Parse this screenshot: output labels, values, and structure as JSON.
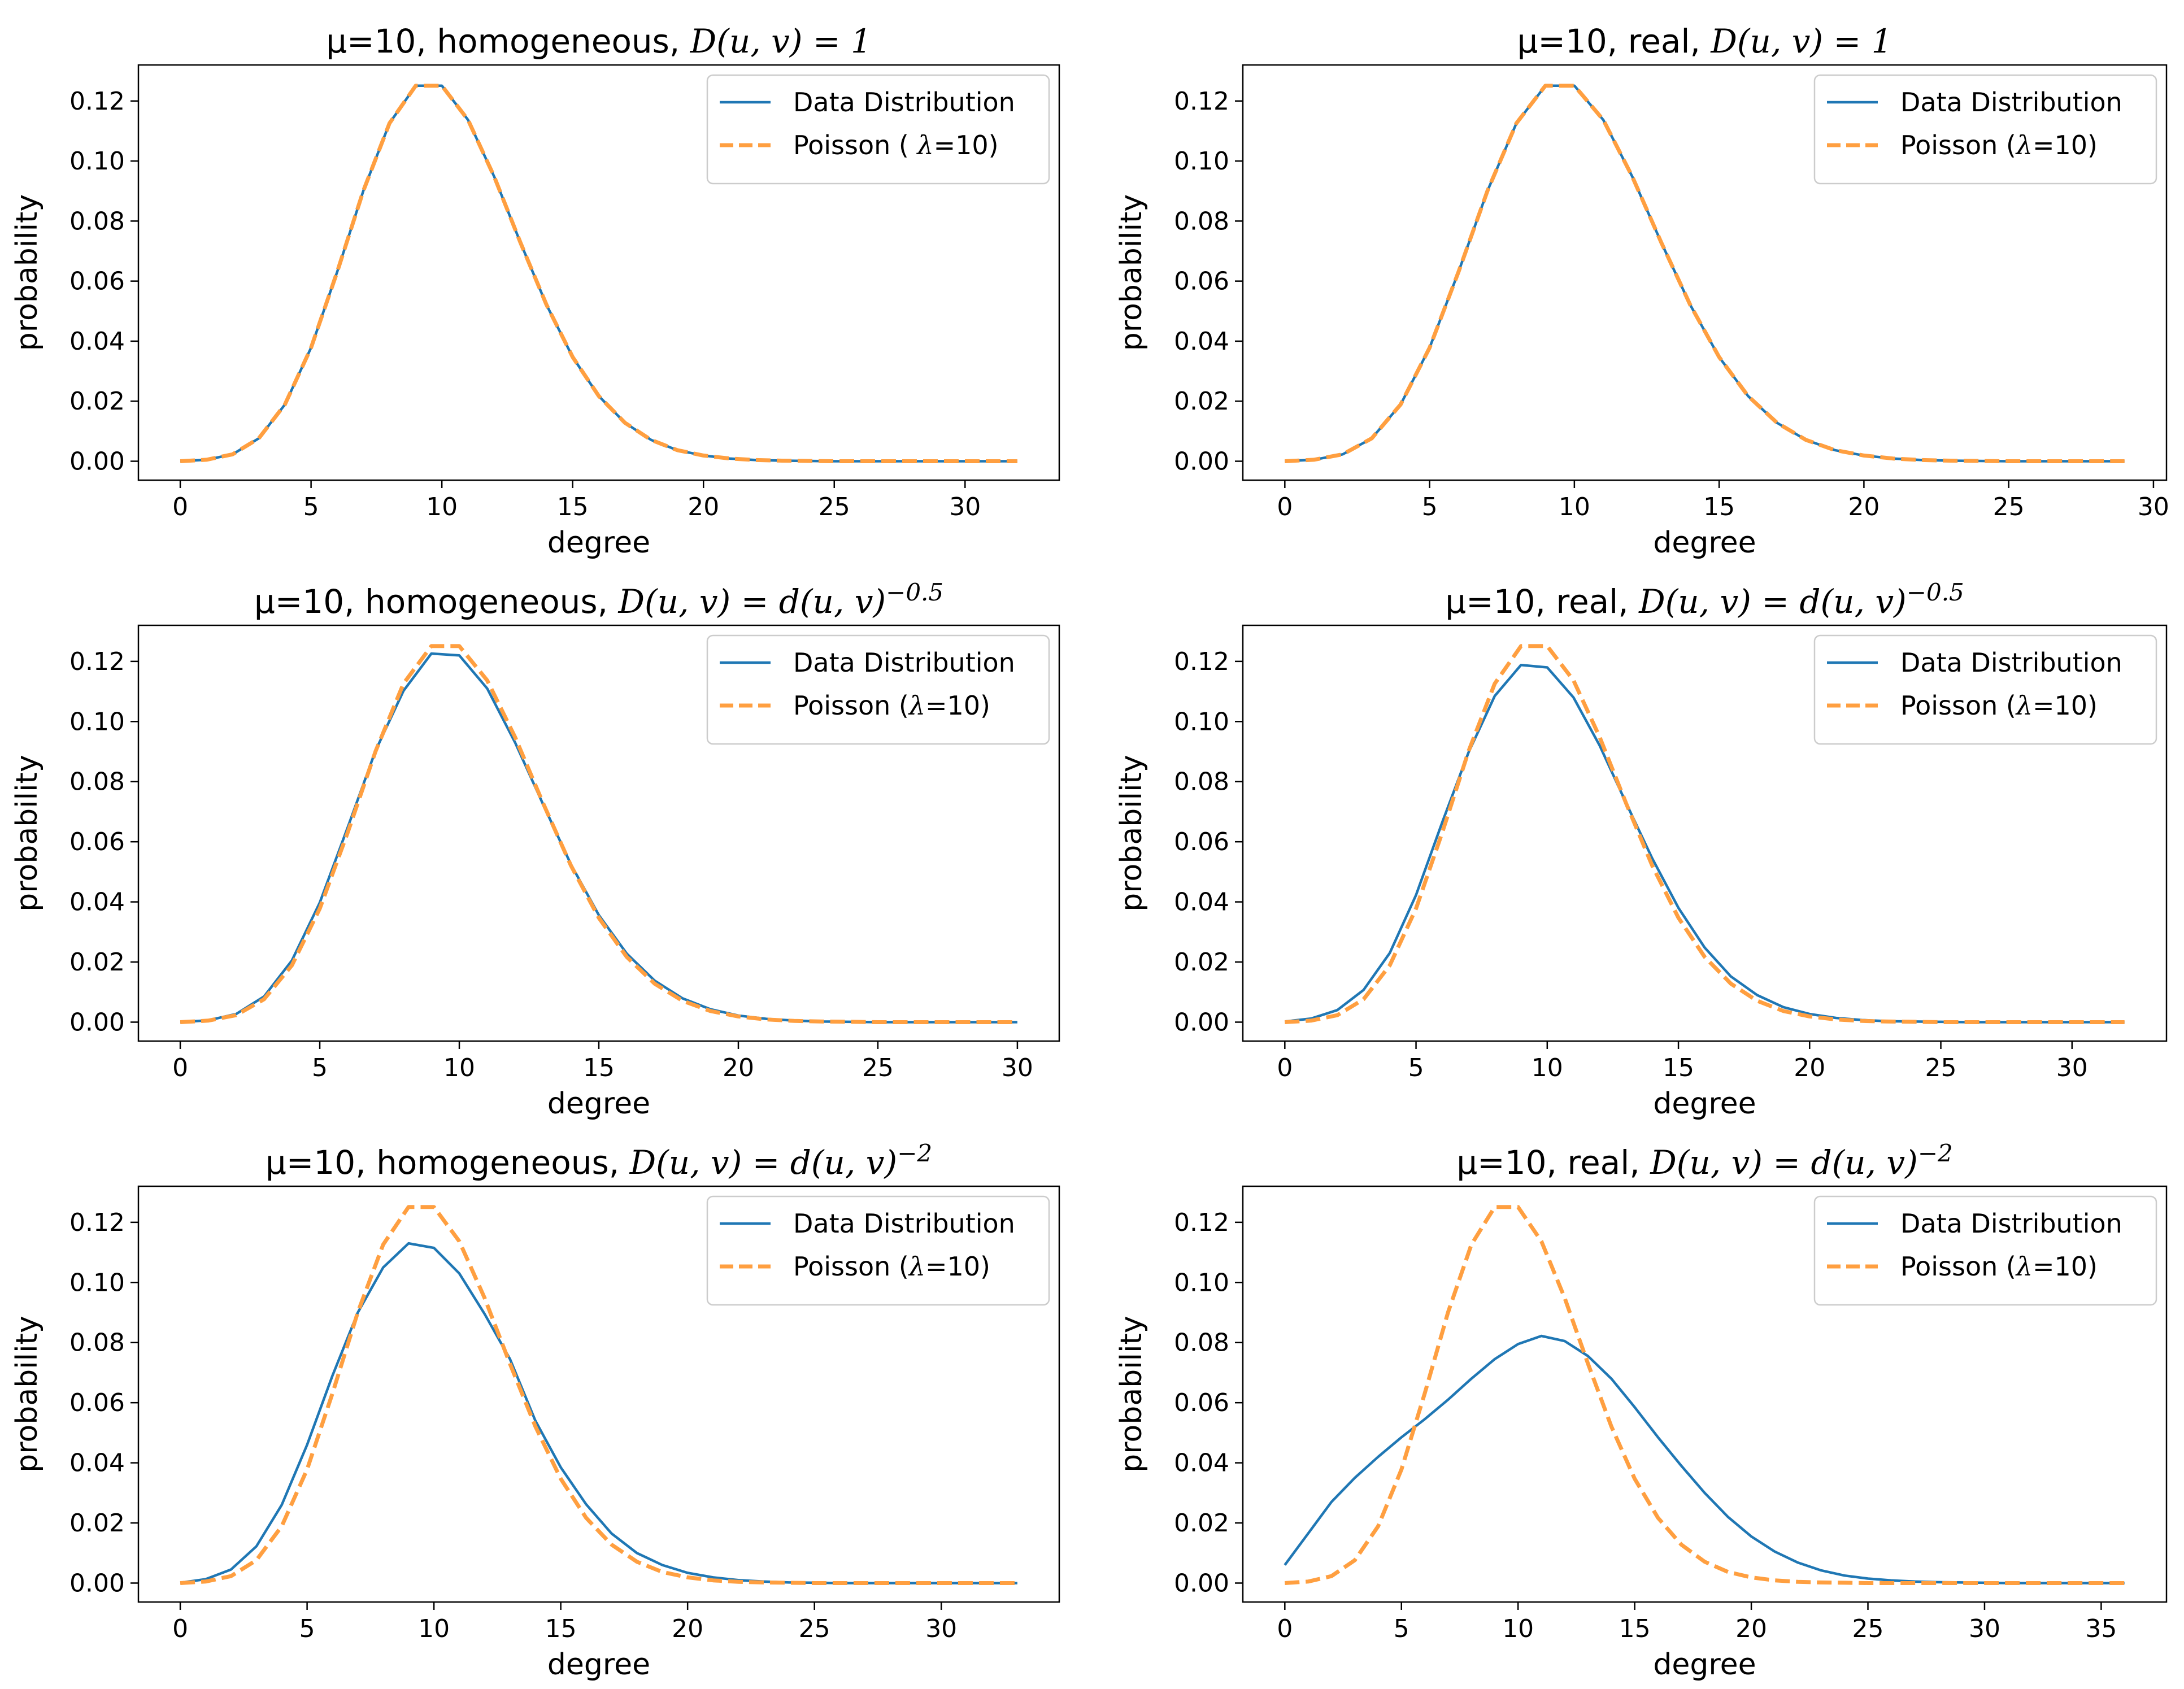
{
  "colors": {
    "data": "#1f77b4",
    "poisson": "#ff9f40"
  },
  "chart_data": [
    {
      "type": "line",
      "title": {
        "prefix": "μ=10, homogeneous, ",
        "formula": "D(u, v) = 1"
      },
      "xlabel": "degree",
      "ylabel": "probability",
      "xlim": [
        -1.6,
        33.6
      ],
      "ylim": [
        -0.0063,
        0.132
      ],
      "xticks": [
        0,
        5,
        10,
        15,
        20,
        25,
        30
      ],
      "yticks": [
        "0.00",
        "0.02",
        "0.04",
        "0.06",
        "0.08",
        "0.10",
        "0.12"
      ],
      "legend_position": "top-right",
      "series": [
        {
          "name": "Data Distribution",
          "style": "solid",
          "x_max": 32,
          "values": [
            0.0,
            0.0005,
            0.0023,
            0.0076,
            0.0189,
            0.0378,
            0.0631,
            0.0901,
            0.1126,
            0.1251,
            0.1251,
            0.1137,
            0.0948,
            0.0729,
            0.0521,
            0.0347,
            0.0217,
            0.0128,
            0.0071,
            0.0037,
            0.0019,
            0.0009,
            0.0004,
            0.0002,
            0.0001,
            0.0,
            0.0,
            0.0,
            0.0,
            0.0,
            0.0,
            0.0,
            0.0
          ]
        },
        {
          "name": "Poisson ( λ=10)",
          "style": "dashed",
          "x_max": 32,
          "values": [
            0.0,
            0.0005,
            0.0023,
            0.0076,
            0.0189,
            0.0378,
            0.0631,
            0.0901,
            0.1126,
            0.1251,
            0.1251,
            0.1137,
            0.0948,
            0.0729,
            0.0521,
            0.0347,
            0.0217,
            0.0128,
            0.0071,
            0.0037,
            0.0019,
            0.0009,
            0.0004,
            0.0002,
            0.0001,
            0.0,
            0.0,
            0.0,
            0.0,
            0.0,
            0.0,
            0.0,
            0.0
          ]
        }
      ]
    },
    {
      "type": "line",
      "title": {
        "prefix": "μ=10, real, ",
        "formula": "D(u, v) = 1"
      },
      "xlabel": "degree",
      "ylabel": "probability",
      "xlim": [
        -1.45,
        30.45
      ],
      "ylim": [
        -0.0063,
        0.132
      ],
      "xticks": [
        0,
        5,
        10,
        15,
        20,
        25,
        30
      ],
      "yticks": [
        "0.00",
        "0.02",
        "0.04",
        "0.06",
        "0.08",
        "0.10",
        "0.12"
      ],
      "legend_position": "top-right",
      "series": [
        {
          "name": "Data Distribution",
          "style": "solid",
          "x_max": 29,
          "values": [
            0.0,
            0.0005,
            0.0023,
            0.0076,
            0.0189,
            0.0378,
            0.0631,
            0.0901,
            0.1126,
            0.1251,
            0.1251,
            0.1137,
            0.0948,
            0.0729,
            0.0521,
            0.0347,
            0.0217,
            0.0128,
            0.0071,
            0.0037,
            0.0019,
            0.0009,
            0.0004,
            0.0002,
            0.0001,
            0.0,
            0.0,
            0.0,
            0.0,
            0.0
          ]
        },
        {
          "name": "Poisson (λ=10)",
          "style": "dashed",
          "x_max": 29,
          "values": [
            0.0,
            0.0005,
            0.0023,
            0.0076,
            0.0189,
            0.0378,
            0.0631,
            0.0901,
            0.1126,
            0.1251,
            0.1251,
            0.1137,
            0.0948,
            0.0729,
            0.0521,
            0.0347,
            0.0217,
            0.0128,
            0.0071,
            0.0037,
            0.0019,
            0.0009,
            0.0004,
            0.0002,
            0.0001,
            0.0,
            0.0,
            0.0,
            0.0,
            0.0
          ]
        }
      ]
    },
    {
      "type": "line",
      "title": {
        "prefix": "μ=10, homogeneous, ",
        "formula": "D(u, v) = d(u, v)",
        "exponent": "−0.5"
      },
      "xlabel": "degree",
      "ylabel": "probability",
      "xlim": [
        -1.5,
        31.5
      ],
      "ylim": [
        -0.0063,
        0.132
      ],
      "xticks": [
        0,
        5,
        10,
        15,
        20,
        25,
        30
      ],
      "yticks": [
        "0.00",
        "0.02",
        "0.04",
        "0.06",
        "0.08",
        "0.10",
        "0.12"
      ],
      "legend_position": "top-right",
      "series": [
        {
          "name": "Data Distribution",
          "style": "solid",
          "x_max": 30,
          "values": [
            0.0,
            0.0006,
            0.0027,
            0.0085,
            0.0205,
            0.0398,
            0.0648,
            0.0903,
            0.1102,
            0.1226,
            0.122,
            0.111,
            0.093,
            0.0725,
            0.0525,
            0.0356,
            0.0228,
            0.0138,
            0.0079,
            0.0043,
            0.0022,
            0.0011,
            0.0005,
            0.0002,
            0.0001,
            0.0,
            0.0,
            0.0,
            0.0,
            0.0,
            0.0
          ]
        },
        {
          "name": "Poisson (λ=10)",
          "style": "dashed",
          "x_max": 30,
          "values": [
            0.0,
            0.0005,
            0.0023,
            0.0076,
            0.0189,
            0.0378,
            0.0631,
            0.0901,
            0.1126,
            0.1251,
            0.1251,
            0.1137,
            0.0948,
            0.0729,
            0.0521,
            0.0347,
            0.0217,
            0.0128,
            0.0071,
            0.0037,
            0.0019,
            0.0009,
            0.0004,
            0.0002,
            0.0001,
            0.0,
            0.0,
            0.0,
            0.0,
            0.0,
            0.0
          ]
        }
      ]
    },
    {
      "type": "line",
      "title": {
        "prefix": "μ=10, real, ",
        "formula": "D(u, v) = d(u, v)",
        "exponent": "−0.5"
      },
      "xlabel": "degree",
      "ylabel": "probability",
      "xlim": [
        -1.6,
        33.6
      ],
      "ylim": [
        -0.0063,
        0.132
      ],
      "xticks": [
        0,
        5,
        10,
        15,
        20,
        25,
        30
      ],
      "yticks": [
        "0.00",
        "0.02",
        "0.04",
        "0.06",
        "0.08",
        "0.10",
        "0.12"
      ],
      "legend_position": "top-right",
      "series": [
        {
          "name": "Data Distribution",
          "style": "solid",
          "x_max": 32,
          "values": [
            0.0002,
            0.0012,
            0.004,
            0.0107,
            0.023,
            0.0423,
            0.0665,
            0.0897,
            0.1085,
            0.1188,
            0.118,
            0.108,
            0.092,
            0.073,
            0.0545,
            0.038,
            0.0248,
            0.0152,
            0.009,
            0.005,
            0.0027,
            0.0014,
            0.0007,
            0.0003,
            0.0002,
            0.0001,
            0.0,
            0.0,
            0.0,
            0.0,
            0.0,
            0.0,
            0.0
          ]
        },
        {
          "name": "Poisson (λ=10)",
          "style": "dashed",
          "x_max": 32,
          "values": [
            0.0,
            0.0005,
            0.0023,
            0.0076,
            0.0189,
            0.0378,
            0.0631,
            0.0901,
            0.1126,
            0.1251,
            0.1251,
            0.1137,
            0.0948,
            0.0729,
            0.0521,
            0.0347,
            0.0217,
            0.0128,
            0.0071,
            0.0037,
            0.0019,
            0.0009,
            0.0004,
            0.0002,
            0.0001,
            0.0,
            0.0,
            0.0,
            0.0,
            0.0,
            0.0,
            0.0,
            0.0
          ]
        }
      ]
    },
    {
      "type": "line",
      "title": {
        "prefix": "μ=10, homogeneous, ",
        "formula": "D(u, v) = d(u, v)",
        "exponent": "−2"
      },
      "xlabel": "degree",
      "ylabel": "probability",
      "xlim": [
        -1.65,
        34.65
      ],
      "ylim": [
        -0.0063,
        0.132
      ],
      "xticks": [
        0,
        5,
        10,
        15,
        20,
        25,
        30
      ],
      "yticks": [
        "0.00",
        "0.02",
        "0.04",
        "0.06",
        "0.08",
        "0.10",
        "0.12"
      ],
      "legend_position": "top-right",
      "series": [
        {
          "name": "Data Distribution",
          "style": "solid",
          "x_max": 33,
          "values": [
            0.0001,
            0.0013,
            0.0045,
            0.0122,
            0.026,
            0.046,
            0.069,
            0.09,
            0.105,
            0.113,
            0.1115,
            0.103,
            0.0895,
            0.0745,
            0.054,
            0.0385,
            0.0262,
            0.0165,
            0.01,
            0.006,
            0.0034,
            0.0019,
            0.001,
            0.0005,
            0.0002,
            0.0001,
            0.0,
            0.0,
            0.0,
            0.0,
            0.0,
            0.0,
            0.0,
            0.0
          ]
        },
        {
          "name": "Poisson (λ=10)",
          "style": "dashed",
          "x_max": 33,
          "values": [
            0.0,
            0.0005,
            0.0023,
            0.0076,
            0.0189,
            0.0378,
            0.0631,
            0.0901,
            0.1126,
            0.1251,
            0.1251,
            0.1137,
            0.0948,
            0.0729,
            0.0521,
            0.0347,
            0.0217,
            0.0128,
            0.0071,
            0.0037,
            0.0019,
            0.0009,
            0.0004,
            0.0002,
            0.0001,
            0.0,
            0.0,
            0.0,
            0.0,
            0.0,
            0.0,
            0.0,
            0.0,
            0.0
          ]
        }
      ]
    },
    {
      "type": "line",
      "title": {
        "prefix": "μ=10, real, ",
        "formula": "D(u, v) = d(u, v)",
        "exponent": "−2"
      },
      "xlabel": "degree",
      "ylabel": "probability",
      "xlim": [
        -1.8,
        37.8
      ],
      "ylim": [
        -0.0063,
        0.132
      ],
      "xticks": [
        0,
        5,
        10,
        15,
        20,
        25,
        30,
        35
      ],
      "yticks": [
        "0.00",
        "0.02",
        "0.04",
        "0.06",
        "0.08",
        "0.10",
        "0.12"
      ],
      "legend_position": "top-right",
      "series": [
        {
          "name": "Data Distribution",
          "style": "solid",
          "x_max": 36,
          "values": [
            0.006,
            0.0165,
            0.027,
            0.035,
            0.042,
            0.0485,
            0.0545,
            0.061,
            0.068,
            0.0745,
            0.0795,
            0.0822,
            0.0805,
            0.0755,
            0.068,
            0.0585,
            0.0485,
            0.039,
            0.03,
            0.022,
            0.0155,
            0.0105,
            0.0068,
            0.0042,
            0.0025,
            0.0015,
            0.0009,
            0.0005,
            0.0003,
            0.0002,
            0.0001,
            0.0,
            0.0,
            0.0,
            0.0,
            0.0,
            0.0
          ]
        },
        {
          "name": "Poisson (λ=10)",
          "style": "dashed",
          "x_max": 36,
          "values": [
            0.0,
            0.0005,
            0.0023,
            0.0076,
            0.0189,
            0.0378,
            0.0631,
            0.0901,
            0.1126,
            0.1251,
            0.1251,
            0.1137,
            0.0948,
            0.0729,
            0.0521,
            0.0347,
            0.0217,
            0.0128,
            0.0071,
            0.0037,
            0.0019,
            0.0009,
            0.0004,
            0.0002,
            0.0001,
            0.0,
            0.0,
            0.0,
            0.0,
            0.0,
            0.0,
            0.0,
            0.0,
            0.0,
            0.0,
            0.0,
            0.0
          ]
        }
      ]
    }
  ]
}
